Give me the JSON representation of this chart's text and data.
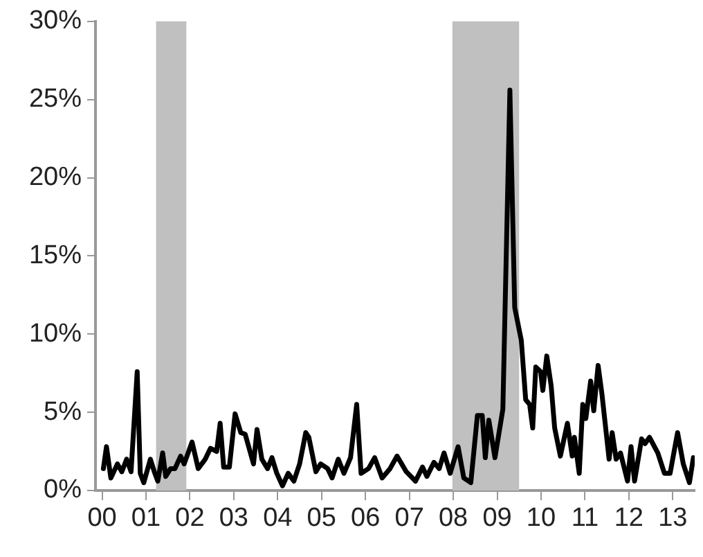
{
  "chart_data": {
    "type": "line",
    "x": [
      2000.03,
      2000.1,
      2000.2,
      2000.35,
      2000.45,
      2000.56,
      2000.66,
      2000.8,
      2000.87,
      2000.95,
      2001.1,
      2001.19,
      2001.27,
      2001.38,
      2001.45,
      2001.56,
      2001.66,
      2001.79,
      2001.87,
      2002.05,
      2002.19,
      2002.35,
      2002.47,
      2002.61,
      2002.69,
      2002.77,
      2002.9,
      2003.03,
      2003.16,
      2003.26,
      2003.45,
      2003.53,
      2003.64,
      2003.77,
      2003.87,
      2003.98,
      2004.11,
      2004.24,
      2004.37,
      2004.5,
      2004.64,
      2004.71,
      2004.87,
      2004.98,
      2005.14,
      2005.24,
      2005.38,
      2005.51,
      2005.66,
      2005.8,
      2005.9,
      2006.07,
      2006.21,
      2006.38,
      2006.56,
      2006.72,
      2006.93,
      2007.14,
      2007.3,
      2007.4,
      2007.56,
      2007.68,
      2007.79,
      2007.93,
      2008.11,
      2008.24,
      2008.4,
      2008.55,
      2008.66,
      2008.73,
      2008.81,
      2008.95,
      2009.13,
      2009.29,
      2009.4,
      2009.55,
      2009.65,
      2009.74,
      2009.81,
      2009.88,
      2009.99,
      2010.04,
      2010.13,
      2010.23,
      2010.31,
      2010.44,
      2010.6,
      2010.71,
      2010.76,
      2010.87,
      2010.95,
      2011.02,
      2011.13,
      2011.2,
      2011.3,
      2011.39,
      2011.55,
      2011.62,
      2011.71,
      2011.81,
      2011.97,
      2012.05,
      2012.13,
      2012.29,
      2012.37,
      2012.47,
      2012.66,
      2012.81,
      2012.94,
      2013.11,
      2013.24,
      2013.38,
      2013.47
    ],
    "series": [
      {
        "color": "#000000",
        "values": [
          1.4,
          2.8,
          0.8,
          1.7,
          1.2,
          2.0,
          1.2,
          7.6,
          1.1,
          0.5,
          2.0,
          1.2,
          0.6,
          2.4,
          0.9,
          1.4,
          1.4,
          2.2,
          1.7,
          3.1,
          1.4,
          2.0,
          2.7,
          2.5,
          4.3,
          1.5,
          1.5,
          4.9,
          3.7,
          3.6,
          1.7,
          3.9,
          2.0,
          1.4,
          2.1,
          1.1,
          0.3,
          1.1,
          0.6,
          1.7,
          3.7,
          3.4,
          1.2,
          1.7,
          1.4,
          0.8,
          2.0,
          1.1,
          2.1,
          5.5,
          1.1,
          1.4,
          2.1,
          0.8,
          1.4,
          2.2,
          1.2,
          0.6,
          1.5,
          0.9,
          1.8,
          1.4,
          2.4,
          1.1,
          2.8,
          0.8,
          0.5,
          4.8,
          4.8,
          2.1,
          4.5,
          2.1,
          5.2,
          25.6,
          11.7,
          9.6,
          5.8,
          5.5,
          4.0,
          7.9,
          7.6,
          6.4,
          8.6,
          6.7,
          4.0,
          2.2,
          4.3,
          2.2,
          3.4,
          1.1,
          5.5,
          4.6,
          7.0,
          5.1,
          8.0,
          6.1,
          2.0,
          3.7,
          2.0,
          2.4,
          0.6,
          2.8,
          0.6,
          3.3,
          3.0,
          3.4,
          2.4,
          1.1,
          1.1,
          3.7,
          1.7,
          0.5,
          2.1
        ]
      }
    ],
    "xlim": [
      1999.85,
      2013.5
    ],
    "xticks": [
      {
        "value": 2000,
        "label": "00"
      },
      {
        "value": 2001,
        "label": "01"
      },
      {
        "value": 2002,
        "label": "02"
      },
      {
        "value": 2003,
        "label": "03"
      },
      {
        "value": 2004,
        "label": "04"
      },
      {
        "value": 2005,
        "label": "05"
      },
      {
        "value": 2006,
        "label": "06"
      },
      {
        "value": 2007,
        "label": "07"
      },
      {
        "value": 2008,
        "label": "08"
      },
      {
        "value": 2009,
        "label": "09"
      },
      {
        "value": 2010,
        "label": "10"
      },
      {
        "value": 2011,
        "label": "11"
      },
      {
        "value": 2012,
        "label": "12"
      },
      {
        "value": 2013,
        "label": "13"
      }
    ],
    "ylim": [
      0,
      30
    ],
    "yticks": [
      {
        "value": 0,
        "label": "0%"
      },
      {
        "value": 5,
        "label": "5%"
      },
      {
        "value": 10,
        "label": "10%"
      },
      {
        "value": 15,
        "label": "15%"
      },
      {
        "value": 20,
        "label": "20%"
      },
      {
        "value": 25,
        "label": "25%"
      },
      {
        "value": 30,
        "label": "30%"
      }
    ],
    "bands": [
      {
        "axis": "x",
        "from": 2001.23,
        "to": 2001.92,
        "color": "#c0c0c0"
      },
      {
        "axis": "x",
        "from": 2007.98,
        "to": 2009.5,
        "color": "#c0c0c0"
      }
    ],
    "grid": false,
    "legend": false,
    "marker": "none",
    "line_style": "solid"
  }
}
